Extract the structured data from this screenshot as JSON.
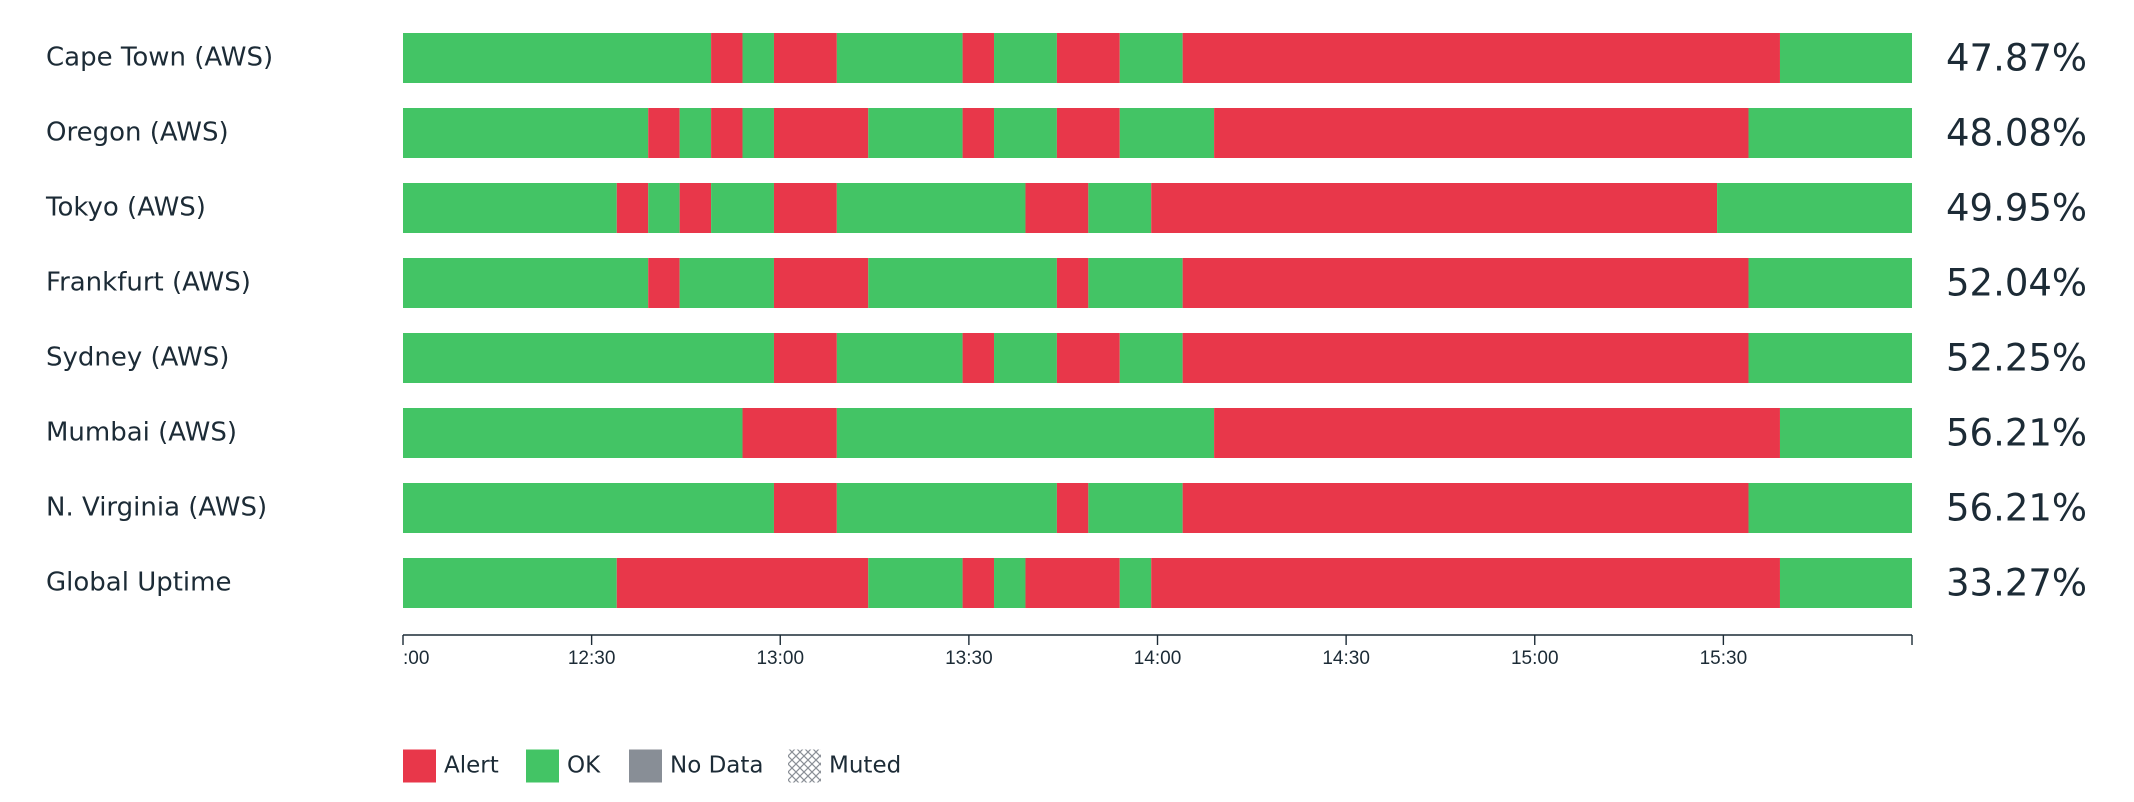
{
  "chart_data": {
    "type": "status-timeline",
    "xlim": [
      0,
      240
    ],
    "xticks": [
      {
        "value": 0,
        "label": ":00"
      },
      {
        "value": 30,
        "label": "12:30"
      },
      {
        "value": 60,
        "label": "13:00"
      },
      {
        "value": 90,
        "label": "13:30"
      },
      {
        "value": 120,
        "label": "14:00"
      },
      {
        "value": 150,
        "label": "14:30"
      },
      {
        "value": 180,
        "label": "15:00"
      },
      {
        "value": 210,
        "label": "15:30"
      }
    ],
    "states": [
      {
        "name": "Alert",
        "color": "#e8374a"
      },
      {
        "name": "OK",
        "color": "#43c465"
      },
      {
        "name": "No Data",
        "color": "#888e96"
      },
      {
        "name": "Muted",
        "pattern": "crosshatch"
      }
    ],
    "rows": [
      {
        "name": "Cape Town (AWS)",
        "uptime": "47.87%",
        "segments": [
          {
            "start": 0,
            "end": 49,
            "state": 1
          },
          {
            "start": 49,
            "end": 54,
            "state": 0
          },
          {
            "start": 54,
            "end": 59,
            "state": 1
          },
          {
            "start": 59,
            "end": 69,
            "state": 0
          },
          {
            "start": 69,
            "end": 89,
            "state": 1
          },
          {
            "start": 89,
            "end": 94,
            "state": 0
          },
          {
            "start": 94,
            "end": 104,
            "state": 1
          },
          {
            "start": 104,
            "end": 114,
            "state": 0
          },
          {
            "start": 114,
            "end": 124,
            "state": 1
          },
          {
            "start": 124,
            "end": 219,
            "state": 0
          },
          {
            "start": 219,
            "end": 240,
            "state": 1
          }
        ]
      },
      {
        "name": "Oregon (AWS)",
        "uptime": "48.08%",
        "segments": [
          {
            "start": 0,
            "end": 39,
            "state": 1
          },
          {
            "start": 39,
            "end": 44,
            "state": 0
          },
          {
            "start": 44,
            "end": 49,
            "state": 1
          },
          {
            "start": 49,
            "end": 54,
            "state": 0
          },
          {
            "start": 54,
            "end": 59,
            "state": 1
          },
          {
            "start": 59,
            "end": 74,
            "state": 0
          },
          {
            "start": 74,
            "end": 89,
            "state": 1
          },
          {
            "start": 89,
            "end": 94,
            "state": 0
          },
          {
            "start": 94,
            "end": 104,
            "state": 1
          },
          {
            "start": 104,
            "end": 114,
            "state": 0
          },
          {
            "start": 114,
            "end": 129,
            "state": 1
          },
          {
            "start": 129,
            "end": 214,
            "state": 0
          },
          {
            "start": 214,
            "end": 240,
            "state": 1
          }
        ]
      },
      {
        "name": "Tokyo (AWS)",
        "uptime": "49.95%",
        "segments": [
          {
            "start": 0,
            "end": 34,
            "state": 1
          },
          {
            "start": 34,
            "end": 39,
            "state": 0
          },
          {
            "start": 39,
            "end": 44,
            "state": 1
          },
          {
            "start": 44,
            "end": 49,
            "state": 0
          },
          {
            "start": 49,
            "end": 59,
            "state": 1
          },
          {
            "start": 59,
            "end": 69,
            "state": 0
          },
          {
            "start": 69,
            "end": 99,
            "state": 1
          },
          {
            "start": 99,
            "end": 109,
            "state": 0
          },
          {
            "start": 109,
            "end": 119,
            "state": 1
          },
          {
            "start": 119,
            "end": 209,
            "state": 0
          },
          {
            "start": 209,
            "end": 240,
            "state": 1
          }
        ]
      },
      {
        "name": "Frankfurt (AWS)",
        "uptime": "52.04%",
        "segments": [
          {
            "start": 0,
            "end": 39,
            "state": 1
          },
          {
            "start": 39,
            "end": 44,
            "state": 0
          },
          {
            "start": 44,
            "end": 59,
            "state": 1
          },
          {
            "start": 59,
            "end": 74,
            "state": 0
          },
          {
            "start": 74,
            "end": 104,
            "state": 1
          },
          {
            "start": 104,
            "end": 109,
            "state": 0
          },
          {
            "start": 109,
            "end": 124,
            "state": 1
          },
          {
            "start": 124,
            "end": 214,
            "state": 0
          },
          {
            "start": 214,
            "end": 240,
            "state": 1
          }
        ]
      },
      {
        "name": "Sydney (AWS)",
        "uptime": "52.25%",
        "segments": [
          {
            "start": 0,
            "end": 59,
            "state": 1
          },
          {
            "start": 59,
            "end": 69,
            "state": 0
          },
          {
            "start": 69,
            "end": 89,
            "state": 1
          },
          {
            "start": 89,
            "end": 94,
            "state": 0
          },
          {
            "start": 94,
            "end": 104,
            "state": 1
          },
          {
            "start": 104,
            "end": 114,
            "state": 0
          },
          {
            "start": 114,
            "end": 124,
            "state": 1
          },
          {
            "start": 124,
            "end": 214,
            "state": 0
          },
          {
            "start": 214,
            "end": 240,
            "state": 1
          }
        ]
      },
      {
        "name": "Mumbai (AWS)",
        "uptime": "56.21%",
        "segments": [
          {
            "start": 0,
            "end": 54,
            "state": 1
          },
          {
            "start": 54,
            "end": 69,
            "state": 0
          },
          {
            "start": 69,
            "end": 129,
            "state": 1
          },
          {
            "start": 129,
            "end": 219,
            "state": 0
          },
          {
            "start": 219,
            "end": 240,
            "state": 1
          }
        ]
      },
      {
        "name": "N. Virginia (AWS)",
        "uptime": "56.21%",
        "segments": [
          {
            "start": 0,
            "end": 59,
            "state": 1
          },
          {
            "start": 59,
            "end": 69,
            "state": 0
          },
          {
            "start": 69,
            "end": 104,
            "state": 1
          },
          {
            "start": 104,
            "end": 109,
            "state": 0
          },
          {
            "start": 109,
            "end": 124,
            "state": 1
          },
          {
            "start": 124,
            "end": 214,
            "state": 0
          },
          {
            "start": 214,
            "end": 240,
            "state": 1
          }
        ]
      },
      {
        "name": "Global Uptime",
        "uptime": "33.27%",
        "segments": [
          {
            "start": 0,
            "end": 34,
            "state": 1
          },
          {
            "start": 34,
            "end": 74,
            "state": 0
          },
          {
            "start": 74,
            "end": 89,
            "state": 1
          },
          {
            "start": 89,
            "end": 94,
            "state": 0
          },
          {
            "start": 94,
            "end": 99,
            "state": 1
          },
          {
            "start": 99,
            "end": 114,
            "state": 0
          },
          {
            "start": 114,
            "end": 119,
            "state": 1
          },
          {
            "start": 119,
            "end": 219,
            "state": 0
          },
          {
            "start": 219,
            "end": 240,
            "state": 1
          }
        ]
      }
    ]
  }
}
